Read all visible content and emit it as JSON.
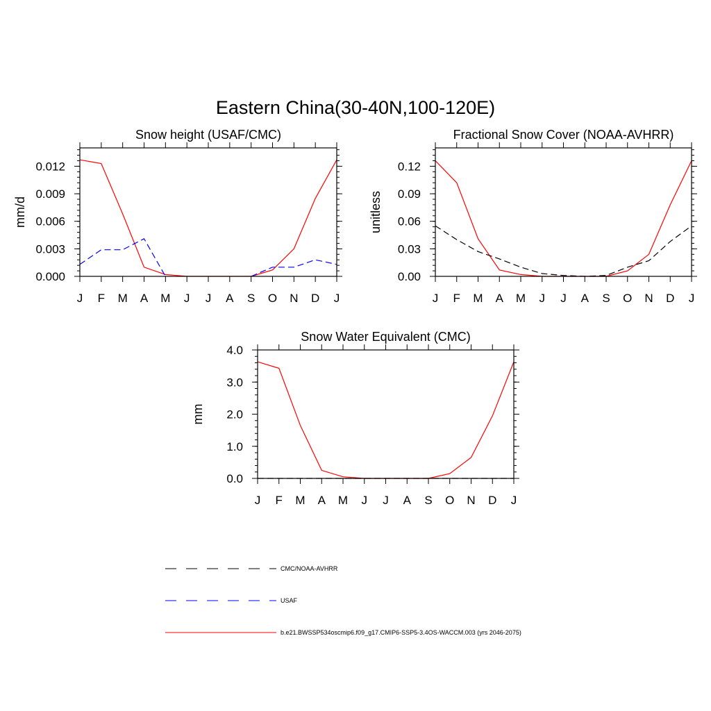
{
  "figure": {
    "title": "Eastern China(30-40N,100-120E)"
  },
  "months": [
    "J",
    "F",
    "M",
    "A",
    "M",
    "J",
    "J",
    "A",
    "S",
    "O",
    "N",
    "D",
    "J"
  ],
  "colors": {
    "model": "#ff0000",
    "usaf": "#0000ff",
    "cmc": "#000000"
  },
  "legend": [
    {
      "label": "CMC/NOAA-AVHRR",
      "color": "#000000",
      "dash": true
    },
    {
      "label": "USAF",
      "color": "#0000ff",
      "dash": true
    },
    {
      "label": "b.e21.BWSSP534oscmip6.f09_g17.CMIP6-SSP5-3.4OS-WACCM.003 (yrs 2046-2075)",
      "color": "#ff0000",
      "dash": false
    }
  ],
  "chart_data": [
    {
      "type": "line",
      "title": "Snow height (USAF/CMC)",
      "ylabel": "mm/d",
      "xlabel": "",
      "ylim": [
        0,
        0.014
      ],
      "yticks": [
        0,
        0.003,
        0.006,
        0.009,
        0.012
      ],
      "ytick_labels": [
        "0.000",
        "0.003",
        "0.006",
        "0.009",
        "0.012"
      ],
      "y_minor_step": 0.0006,
      "x": [
        "J",
        "F",
        "M",
        "A",
        "M",
        "J",
        "J",
        "A",
        "S",
        "O",
        "N",
        "D",
        "J"
      ],
      "series": [
        {
          "name": "b.e21.BWSSP534oscmip6.f09_g17.CMIP6-SSP5-3.4OS-WACCM.003 (yrs 2046-2075)",
          "color": "#ff0000",
          "dash": false,
          "values": [
            0.0127,
            0.0123,
            0.0068,
            0.001,
            0.0002,
            0.0,
            0.0,
            0.0,
            0.0,
            0.0007,
            0.003,
            0.0085,
            0.0127
          ]
        },
        {
          "name": "USAF",
          "color": "#0000ff",
          "dash": true,
          "values": [
            0.0013,
            0.0029,
            0.0029,
            0.0041,
            0.0,
            null,
            null,
            null,
            0.0,
            0.001,
            0.001,
            0.0018,
            0.0013
          ]
        }
      ]
    },
    {
      "type": "line",
      "title": "Fractional Snow Cover (NOAA-AVHRR)",
      "ylabel": "unitless",
      "xlabel": "",
      "ylim": [
        0,
        0.14
      ],
      "yticks": [
        0,
        0.03,
        0.06,
        0.09,
        0.12
      ],
      "ytick_labels": [
        "0.00",
        "0.03",
        "0.06",
        "0.09",
        "0.12"
      ],
      "y_minor_step": 0.006,
      "x": [
        "J",
        "F",
        "M",
        "A",
        "M",
        "J",
        "J",
        "A",
        "S",
        "O",
        "N",
        "D",
        "J"
      ],
      "series": [
        {
          "name": "b.e21.BWSSP534oscmip6.f09_g17.CMIP6-SSP5-3.4OS-WACCM.003 (yrs 2046-2075)",
          "color": "#ff0000",
          "dash": false,
          "values": [
            0.126,
            0.102,
            0.041,
            0.007,
            0.002,
            0.0,
            0.0,
            0.0,
            0.0,
            0.006,
            0.024,
            0.078,
            0.126
          ]
        },
        {
          "name": "CMC/NOAA-AVHRR",
          "color": "#000000",
          "dash": true,
          "values": [
            0.055,
            0.04,
            0.027,
            0.019,
            0.01,
            0.003,
            0.001,
            0.0,
            0.001,
            0.01,
            0.017,
            0.038,
            0.055
          ]
        }
      ]
    },
    {
      "type": "line",
      "title": "Snow Water Equivalent (CMC)",
      "ylabel": "mm",
      "xlabel": "",
      "ylim": [
        0,
        4.0
      ],
      "yticks": [
        0,
        1,
        2,
        3,
        4
      ],
      "ytick_labels": [
        "0.0",
        "1.0",
        "2.0",
        "3.0",
        "4.0"
      ],
      "y_minor_step": 0.2,
      "x": [
        "J",
        "F",
        "M",
        "A",
        "M",
        "J",
        "J",
        "A",
        "S",
        "O",
        "N",
        "D",
        "J"
      ],
      "series": [
        {
          "name": "b.e21.BWSSP534oscmip6.f09_g17.CMIP6-SSP5-3.4OS-WACCM.003 (yrs 2046-2075)",
          "color": "#ff0000",
          "dash": false,
          "values": [
            3.63,
            3.43,
            1.65,
            0.25,
            0.05,
            0.0,
            0.0,
            0.0,
            0.0,
            0.15,
            0.65,
            1.95,
            3.63
          ]
        },
        {
          "name": "CMC/NOAA-AVHRR",
          "color": "#000000",
          "dash": true,
          "values": [
            0.0,
            0.0,
            0.0,
            0.0,
            0.0,
            0.0,
            0.0,
            0.0,
            0.0,
            0.0,
            0.0,
            0.0,
            0.0
          ]
        }
      ]
    }
  ]
}
